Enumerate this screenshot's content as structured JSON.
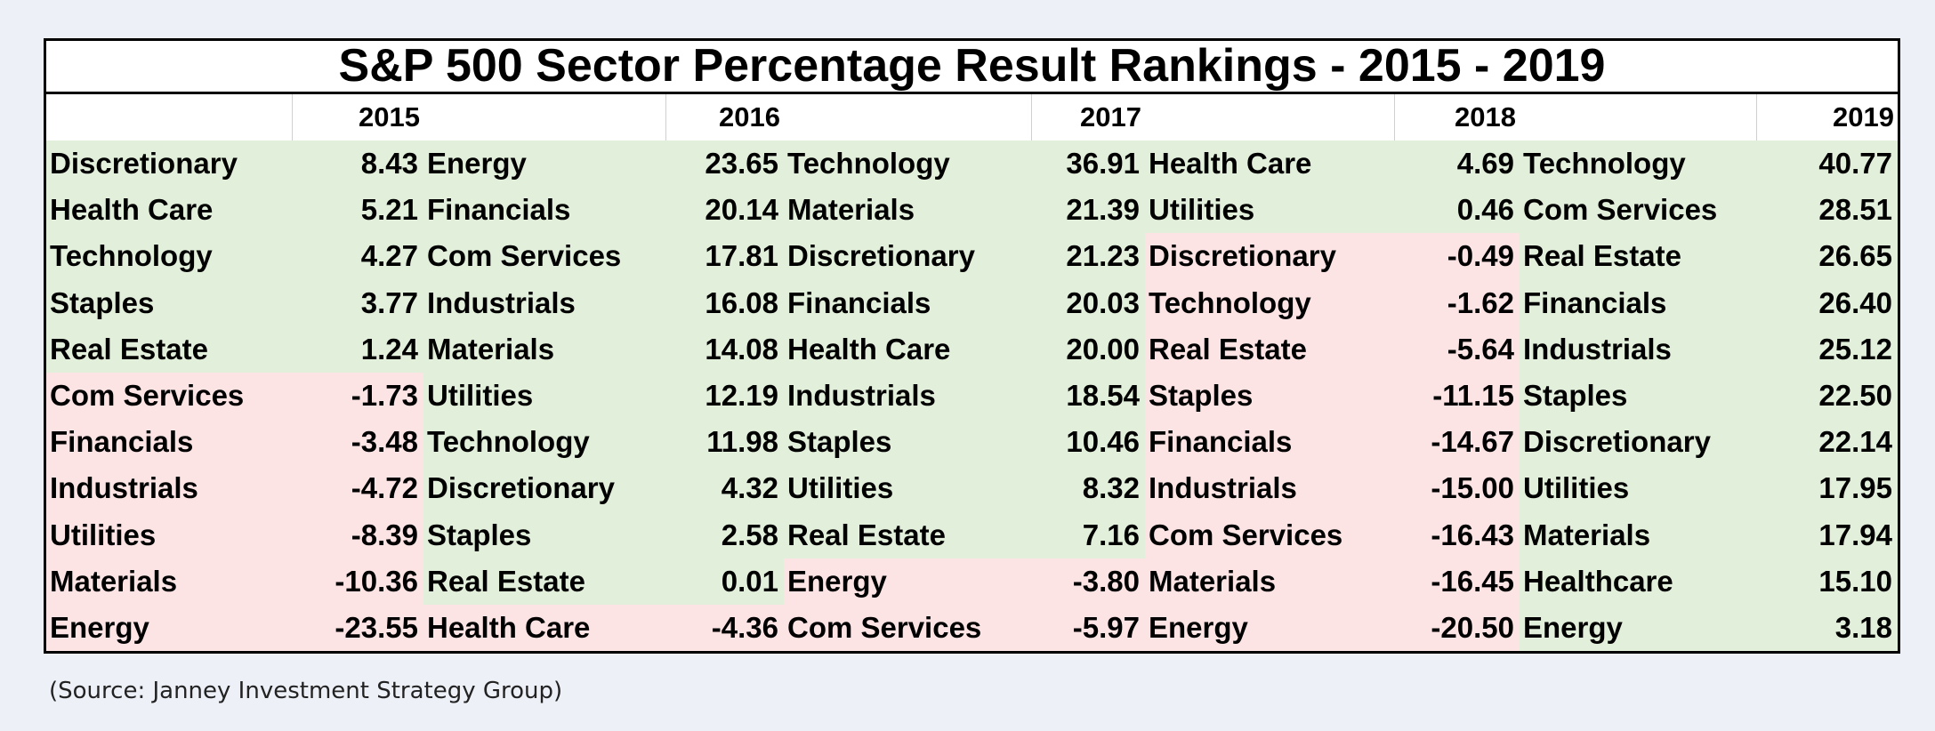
{
  "chart_data": {
    "type": "table",
    "title": "S&P 500 Sector Percentage Result Rankings - 2015 - 2019",
    "source": "(Source: Janney Investment Strategy Group)",
    "colors": {
      "positive": "#e2efda",
      "negative": "#fce4e4"
    },
    "years": [
      {
        "year": "2015",
        "rows": [
          {
            "sector": "Discretionary",
            "value": "8.43"
          },
          {
            "sector": "Health Care",
            "value": "5.21"
          },
          {
            "sector": "Technology",
            "value": "4.27"
          },
          {
            "sector": "Staples",
            "value": "3.77"
          },
          {
            "sector": "Real Estate",
            "value": "1.24"
          },
          {
            "sector": "Com Services",
            "value": "-1.73"
          },
          {
            "sector": "Financials",
            "value": "-3.48"
          },
          {
            "sector": "Industrials",
            "value": "-4.72"
          },
          {
            "sector": "Utilities",
            "value": "-8.39"
          },
          {
            "sector": "Materials",
            "value": "-10.36"
          },
          {
            "sector": "Energy",
            "value": "-23.55"
          }
        ]
      },
      {
        "year": "2016",
        "rows": [
          {
            "sector": "Energy",
            "value": "23.65"
          },
          {
            "sector": "Financials",
            "value": "20.14"
          },
          {
            "sector": "Com Services",
            "value": "17.81"
          },
          {
            "sector": "Industrials",
            "value": "16.08"
          },
          {
            "sector": "Materials",
            "value": "14.08"
          },
          {
            "sector": "Utilities",
            "value": "12.19"
          },
          {
            "sector": "Technology",
            "value": "11.98"
          },
          {
            "sector": "Discretionary",
            "value": "4.32"
          },
          {
            "sector": "Staples",
            "value": "2.58"
          },
          {
            "sector": "Real Estate",
            "value": "0.01"
          },
          {
            "sector": "Health Care",
            "value": "-4.36"
          }
        ]
      },
      {
        "year": "2017",
        "rows": [
          {
            "sector": "Technology",
            "value": "36.91"
          },
          {
            "sector": "Materials",
            "value": "21.39"
          },
          {
            "sector": "Discretionary",
            "value": "21.23"
          },
          {
            "sector": "Financials",
            "value": "20.03"
          },
          {
            "sector": "Health Care",
            "value": "20.00"
          },
          {
            "sector": "Industrials",
            "value": "18.54"
          },
          {
            "sector": "Staples",
            "value": "10.46"
          },
          {
            "sector": "Utilities",
            "value": "8.32"
          },
          {
            "sector": "Real Estate",
            "value": "7.16"
          },
          {
            "sector": "Energy",
            "value": "-3.80"
          },
          {
            "sector": "Com Services",
            "value": "-5.97"
          }
        ]
      },
      {
        "year": "2018",
        "rows": [
          {
            "sector": "Health Care",
            "value": "4.69"
          },
          {
            "sector": "Utilities",
            "value": "0.46"
          },
          {
            "sector": "Discretionary",
            "value": "-0.49"
          },
          {
            "sector": "Technology",
            "value": "-1.62"
          },
          {
            "sector": "Real Estate",
            "value": "-5.64"
          },
          {
            "sector": "Staples",
            "value": "-11.15"
          },
          {
            "sector": "Financials",
            "value": "-14.67"
          },
          {
            "sector": "Industrials",
            "value": "-15.00"
          },
          {
            "sector": "Com Services",
            "value": "-16.43"
          },
          {
            "sector": "Materials",
            "value": "-16.45"
          },
          {
            "sector": "Energy",
            "value": "-20.50"
          }
        ]
      },
      {
        "year": "2019",
        "rows": [
          {
            "sector": "Technology",
            "value": "40.77"
          },
          {
            "sector": "Com Services",
            "value": "28.51"
          },
          {
            "sector": "Real Estate",
            "value": "26.65"
          },
          {
            "sector": "Financials",
            "value": "26.40"
          },
          {
            "sector": "Industrials",
            "value": "25.12"
          },
          {
            "sector": "Staples",
            "value": "22.50"
          },
          {
            "sector": "Discretionary",
            "value": "22.14"
          },
          {
            "sector": "Utilities",
            "value": "17.95"
          },
          {
            "sector": "Materials",
            "value": "17.94"
          },
          {
            "sector": "Healthcare",
            "value": "15.10"
          },
          {
            "sector": "Energy",
            "value": "3.18"
          }
        ]
      }
    ]
  }
}
